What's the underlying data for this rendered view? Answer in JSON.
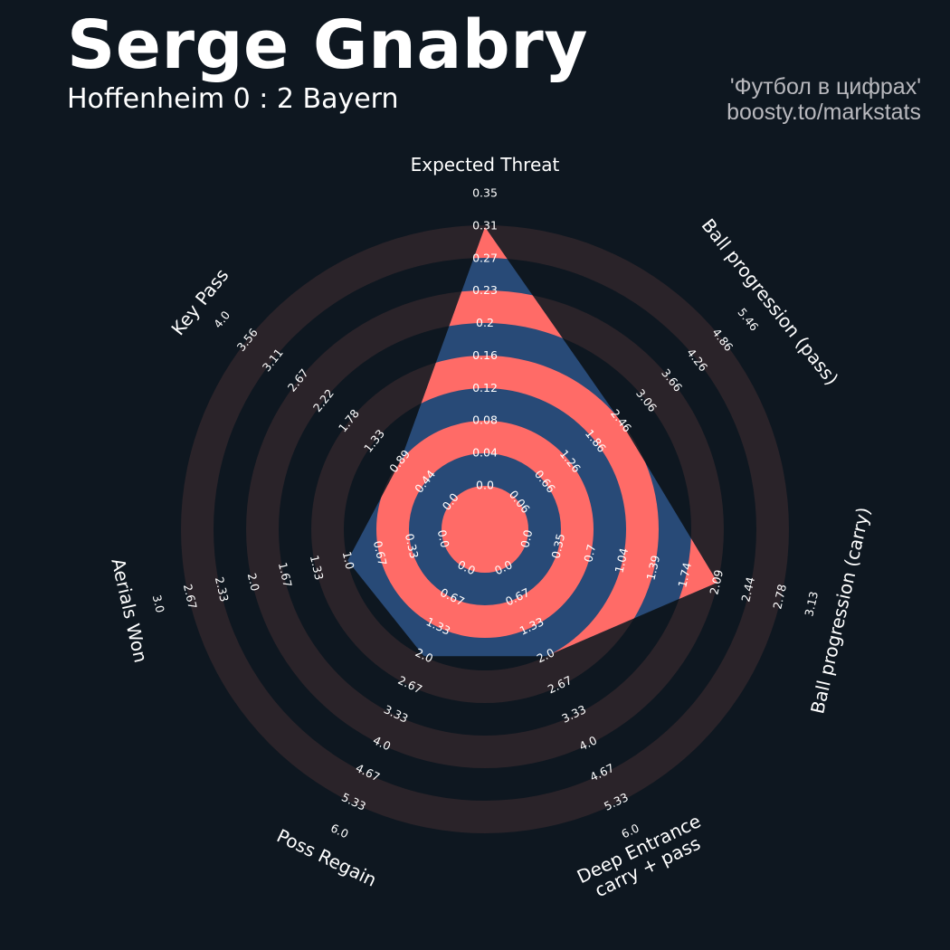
{
  "header": {
    "title": "Serge Gnabry",
    "subtitle": "Hoffenheim 0 : 2 Bayern",
    "credit_line1": "'Футбол в цифрах'",
    "credit_line2": "boosty.to/markstats"
  },
  "colors": {
    "background": "#0e1720",
    "ring": "#2a2329",
    "player_fill": "#284a77",
    "accent": "#ff6b67",
    "text": "#ffffff",
    "credit_text": "#b8b8bd"
  },
  "chart_data": {
    "type": "radar",
    "params": [
      {
        "label": [
          "Expected Threat"
        ],
        "min": 0.0,
        "max": 0.35,
        "ticks": [
          "0.0",
          "0.04",
          "0.08",
          "0.12",
          "0.16",
          "0.2",
          "0.23",
          "0.27",
          "0.31",
          "0.35"
        ],
        "value": 0.31
      },
      {
        "label": [
          "Ball progression (pass)"
        ],
        "min": 0.06,
        "max": 5.46,
        "ticks": [
          "0.06",
          "0.66",
          "1.26",
          "1.86",
          "2.46",
          "3.06",
          "3.66",
          "4.26",
          "4.86",
          "5.46"
        ],
        "value": 2.46
      },
      {
        "label": [
          "Ball progression (carry)"
        ],
        "min": 0.0,
        "max": 3.13,
        "ticks": [
          "0.0",
          "0.35",
          "0.7",
          "1.04",
          "1.39",
          "1.74",
          "2.09",
          "2.44",
          "2.78",
          "3.13"
        ],
        "value": 2.09
      },
      {
        "label": [
          "Deep Entrance",
          "carry + pass"
        ],
        "min": 0.0,
        "max": 6.0,
        "ticks": [
          "0.0",
          "0.67",
          "1.33",
          "2.0",
          "2.67",
          "3.33",
          "4.0",
          "4.67",
          "5.33",
          "6.0"
        ],
        "value": 2.0
      },
      {
        "label": [
          "Poss Regain"
        ],
        "min": 0.0,
        "max": 6.0,
        "ticks": [
          "0.0",
          "0.67",
          "1.33",
          "2.0",
          "2.67",
          "3.33",
          "4.0",
          "4.67",
          "5.33",
          "6.0"
        ],
        "value": 2.0
      },
      {
        "label": [
          "Aerials Won"
        ],
        "min": 0.0,
        "max": 3.0,
        "ticks": [
          "0.0",
          "0.33",
          "0.67",
          "1.0",
          "1.33",
          "1.67",
          "2.0",
          "2.33",
          "2.67",
          "3.0"
        ],
        "value": 1.0
      },
      {
        "label": [
          "Key Pass"
        ],
        "min": 0.0,
        "max": 4.0,
        "ticks": [
          "0.0",
          "0.44",
          "0.89",
          "1.33",
          "1.78",
          "2.22",
          "2.67",
          "3.11",
          "3.56",
          "4.0"
        ],
        "value": 0.89
      }
    ]
  }
}
